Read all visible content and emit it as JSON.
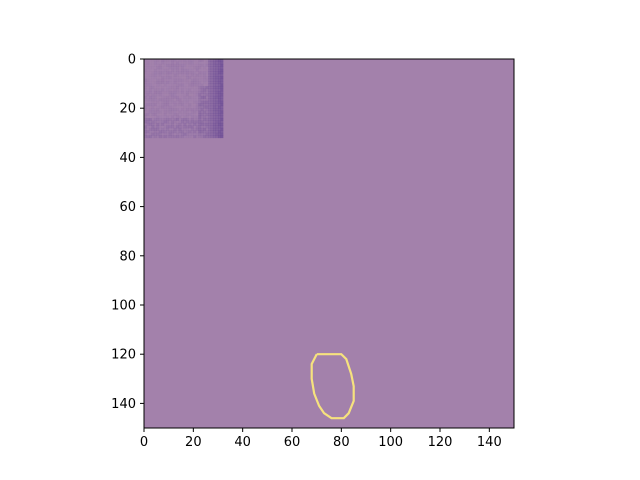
{
  "chart_data": {
    "type": "heatmap",
    "title": "",
    "xlabel": "",
    "ylabel": "",
    "xlim": [
      0,
      150
    ],
    "ylim": [
      150,
      0
    ],
    "x_ticks": [
      0,
      20,
      40,
      60,
      80,
      100,
      120,
      140
    ],
    "y_ticks": [
      0,
      20,
      40,
      60,
      80,
      100,
      120,
      140
    ],
    "x_tick_labels": [
      "0",
      "20",
      "40",
      "60",
      "80",
      "100",
      "120",
      "140"
    ],
    "y_tick_labels": [
      "0",
      "20",
      "40",
      "60",
      "80",
      "100",
      "120",
      "140"
    ],
    "grid": false,
    "background_color": "#a381ab",
    "patch": {
      "x_range": [
        0,
        32
      ],
      "y_range": [
        0,
        32
      ],
      "base_color": "#a584ae",
      "dark_color": "#6a4a94"
    },
    "contour": {
      "color": "#f6e27e",
      "points": [
        [
          70,
          120
        ],
        [
          80,
          120
        ],
        [
          82,
          122
        ],
        [
          84,
          128
        ],
        [
          85,
          133
        ],
        [
          85,
          139
        ],
        [
          83,
          144
        ],
        [
          81,
          146
        ],
        [
          76,
          146
        ],
        [
          73,
          144
        ],
        [
          71,
          141
        ],
        [
          69,
          136
        ],
        [
          68,
          130
        ],
        [
          68,
          124
        ],
        [
          70,
          120
        ]
      ]
    }
  }
}
